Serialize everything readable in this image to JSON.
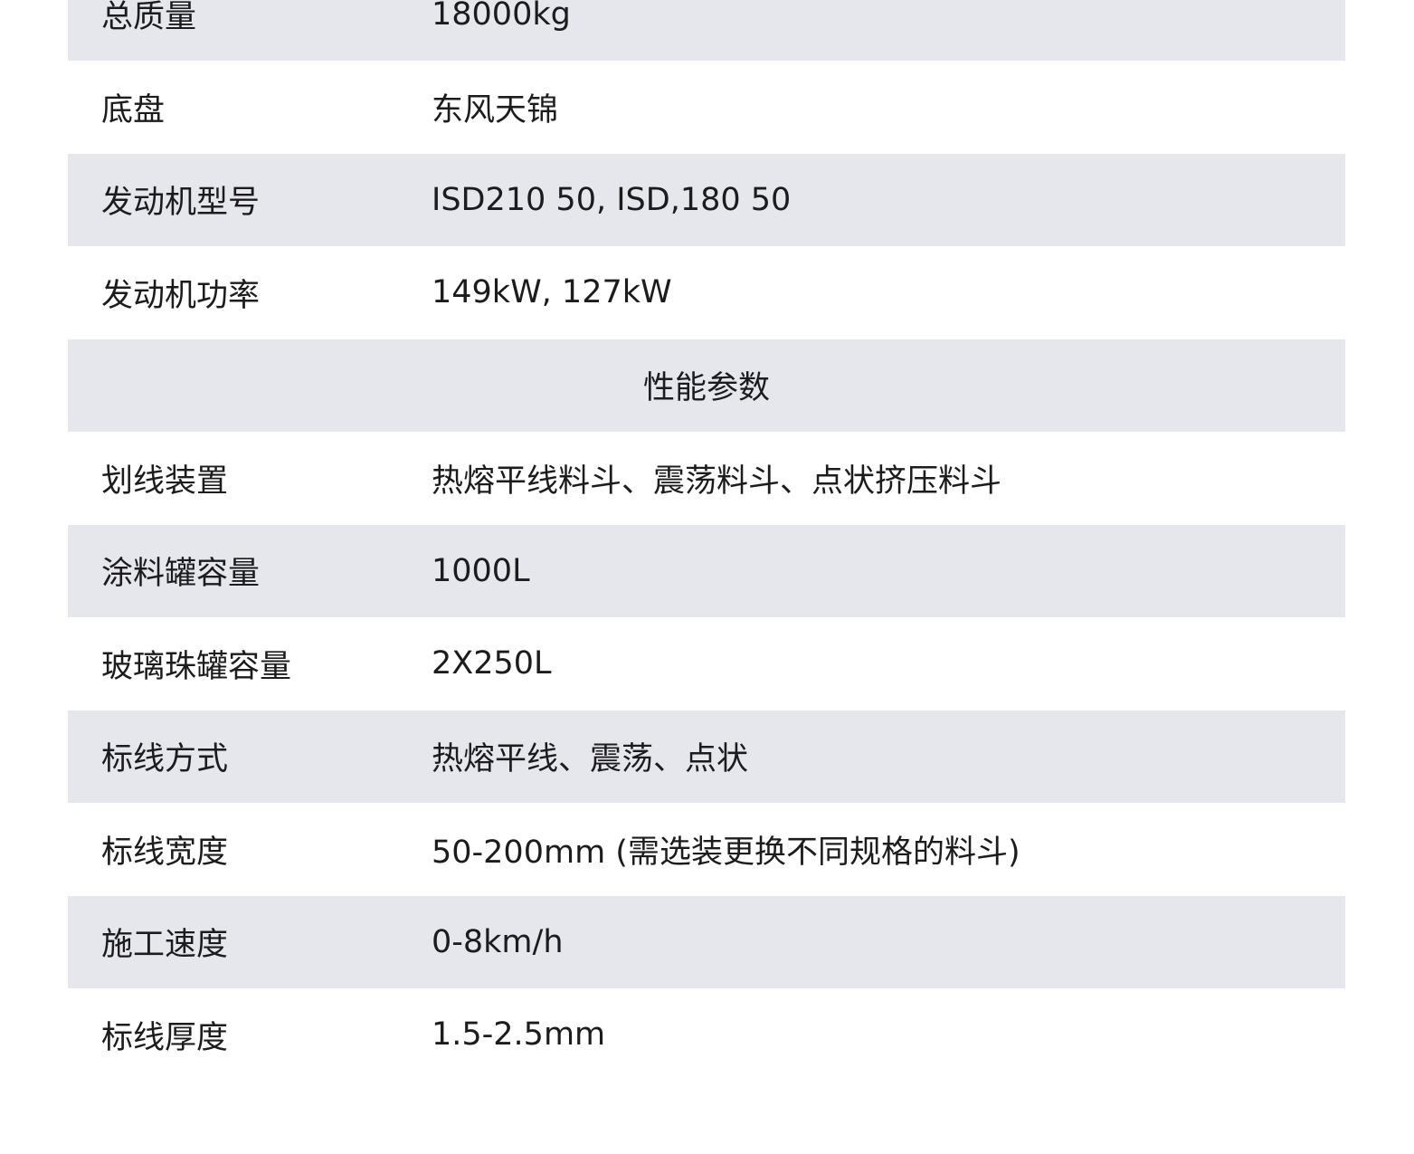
{
  "rows": [
    {
      "label": "总质量",
      "value": "18000kg"
    },
    {
      "label": "底盘",
      "value": "东风天锦"
    },
    {
      "label": "发动机型号",
      "value": "ISD210 50, ISD,180 50"
    },
    {
      "label": "发动机功率",
      "value": "149kW, 127kW"
    }
  ],
  "section_title": "性能参数",
  "perf_rows": [
    {
      "label": "划线装置",
      "value": "热熔平线料斗、震荡料斗、点状挤压料斗"
    },
    {
      "label": "涂料罐容量",
      "value": "1000L"
    },
    {
      "label": "玻璃珠罐容量",
      "value": "2X250L"
    },
    {
      "label": "标线方式",
      "value": "热熔平线、震荡、点状"
    },
    {
      "label": "标线宽度",
      "value": "50-200mm (需选装更换不同规格的料斗)"
    },
    {
      "label": "施工速度",
      "value": "0-8km/h"
    },
    {
      "label": "标线厚度",
      "value": "1.5-2.5mm"
    }
  ],
  "colors": {
    "stripe": "#e6e7ec",
    "text": "#1c1c1e"
  }
}
